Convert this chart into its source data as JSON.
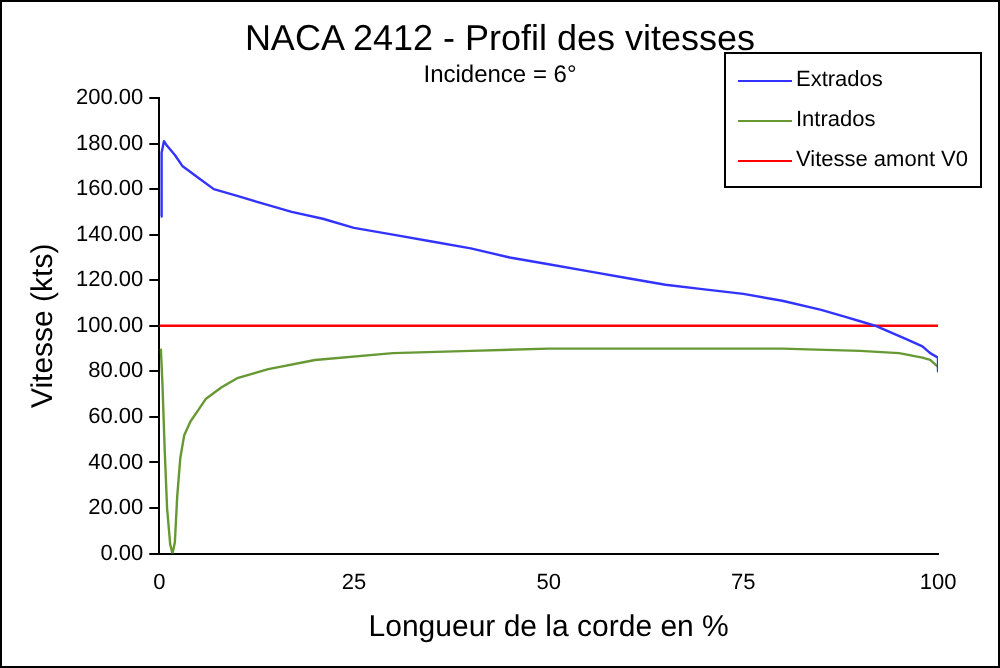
{
  "chart_data": {
    "type": "line",
    "title": "NACA 2412 - Profil des vitesses",
    "subtitle": "Incidence  = 6°",
    "xlabel": "Longueur de la corde en %",
    "ylabel": "Vitesse (kts)",
    "xlim": [
      0,
      100
    ],
    "xticks": [
      0,
      25,
      50,
      75,
      100
    ],
    "ylim": [
      0,
      200
    ],
    "yticks": [
      {
        "value": 0,
        "label": "0.00"
      },
      {
        "value": 20,
        "label": "20.00"
      },
      {
        "value": 40,
        "label": "40.00"
      },
      {
        "value": 60,
        "label": "60.00"
      },
      {
        "value": 80,
        "label": "80.00"
      },
      {
        "value": 100,
        "label": "100.00"
      },
      {
        "value": 120,
        "label": "120.00"
      },
      {
        "value": 140,
        "label": "140.00"
      },
      {
        "value": 160,
        "label": "160.00"
      },
      {
        "value": 180,
        "label": "180.00"
      },
      {
        "value": 200,
        "label": "200.00"
      }
    ],
    "grid": false,
    "legend": "top right",
    "marker": "none",
    "line_style": "solid",
    "series": [
      {
        "name": "Extrados",
        "color": "#3333ff",
        "x": [
          0.2,
          0.3,
          0.6,
          1,
          2,
          3,
          5,
          7,
          10,
          13,
          17,
          21,
          25,
          30,
          35,
          40,
          45,
          50,
          55,
          60,
          65,
          70,
          75,
          80,
          85,
          88,
          90,
          92,
          94,
          96,
          98,
          99,
          100,
          100
        ],
        "values": [
          148,
          176,
          181,
          179,
          175,
          170,
          165,
          160,
          157,
          154,
          150,
          147,
          143,
          140,
          137,
          134,
          130,
          127,
          124,
          121,
          118,
          116,
          114,
          111,
          107,
          104,
          102,
          100,
          97,
          94,
          91,
          88,
          86,
          80
        ]
      },
      {
        "name": "Intrados",
        "color": "#669933",
        "x": [
          0.2,
          0.4,
          0.7,
          1,
          1.4,
          1.7,
          2,
          2.3,
          2.7,
          3.2,
          4,
          5,
          6,
          8,
          10,
          14,
          20,
          30,
          40,
          50,
          60,
          70,
          80,
          90,
          95,
          98,
          99,
          100
        ],
        "values": [
          90,
          75,
          45,
          20,
          4,
          0,
          5,
          25,
          42,
          52,
          58,
          63,
          68,
          73,
          77,
          81,
          85,
          88,
          89,
          90,
          90,
          90,
          90,
          89,
          88,
          86,
          85,
          82
        ]
      }
    ],
    "ref_lines": [
      {
        "axis": "y",
        "value": 100,
        "label": "Vitesse amont V0",
        "color": "#ff0000"
      }
    ]
  }
}
